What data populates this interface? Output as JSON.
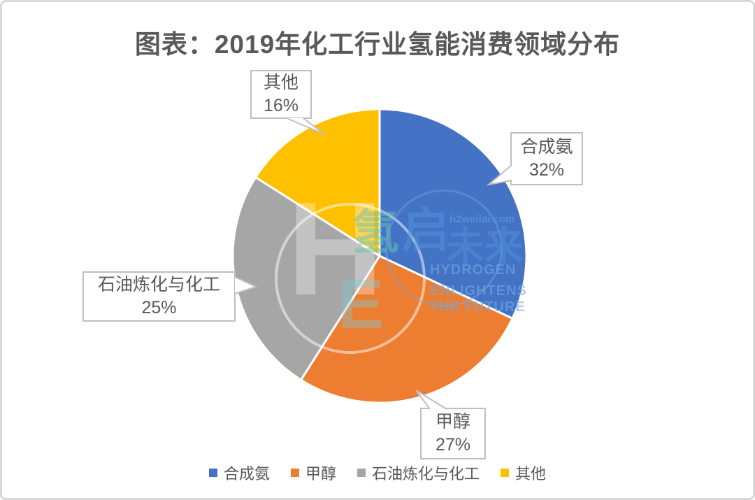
{
  "page": {
    "background": "#ffffff",
    "frame_border": "#d9d9d9"
  },
  "title": "图表：2019年化工行业氢能消费领域分布",
  "chart_data": {
    "type": "pie",
    "title": "图表：2019年化工行业氢能消费领域分布",
    "categories": [
      "合成氨",
      "甲醇",
      "石油炼化与化工",
      "其他"
    ],
    "values": [
      32,
      27,
      25,
      16
    ],
    "unit": "%",
    "colors": [
      "#4472C4",
      "#ED7D31",
      "#A6A6A6",
      "#FFC000"
    ],
    "start_angle_deg": 0,
    "direction": "clockwise",
    "legend_position": "bottom",
    "data_labels": [
      "合成氨 32%",
      "甲醇 27%",
      "石油炼化与化工 25%",
      "其他 16%"
    ],
    "slice_border_color": "#ffffff"
  },
  "callouts": [
    {
      "label": "其他",
      "value": "16%"
    },
    {
      "label": "合成氨",
      "value": "32%"
    },
    {
      "label": "石油炼化与化工",
      "value": "25%"
    },
    {
      "label": "甲醇",
      "value": "27%"
    }
  ],
  "legend": {
    "items": [
      {
        "label": "合成氨"
      },
      {
        "label": "甲醇"
      },
      {
        "label": "石油炼化与化工"
      },
      {
        "label": "其他"
      }
    ]
  },
  "watermark": {
    "logo_letter": "H",
    "logo_letter2": "E",
    "cn_word1": "氢",
    "cn_word2": "启",
    "cn_word3": "未来",
    "url": "h2weilai.com",
    "en_line1": "HYDROGEN",
    "en_line2": "ENLIGHTENS",
    "en_line3": "THE FUTURE"
  }
}
